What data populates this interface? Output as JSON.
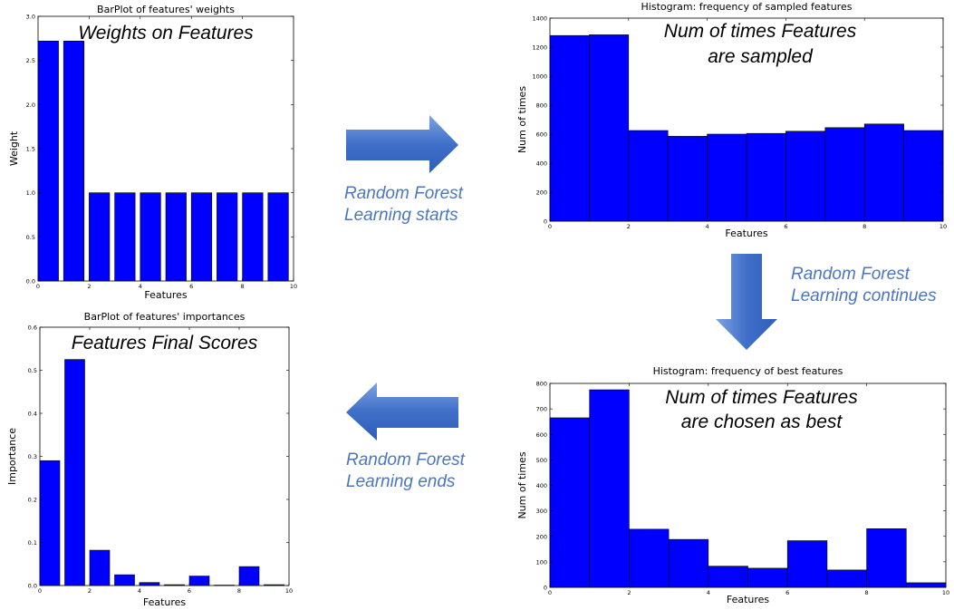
{
  "colors": {
    "bar": "#0000ff",
    "flow_text": "#4a76c2",
    "arrow": "#4a7cd0"
  },
  "flow": {
    "start": [
      "Random Forest",
      "Learning starts"
    ],
    "continue": [
      "Random Forest",
      "Learning continues"
    ],
    "end": [
      "Random Forest",
      "Learning ends"
    ]
  },
  "chart_data": [
    {
      "id": "weights",
      "type": "bar",
      "title": "BarPlot of features' weights",
      "overlay": [
        "Weights on Features"
      ],
      "xlabel": "Features",
      "ylabel": "Weight",
      "x": [
        0,
        1,
        2,
        3,
        4,
        5,
        6,
        7,
        8,
        9
      ],
      "values": [
        2.72,
        2.72,
        1.0,
        1.0,
        1.0,
        1.0,
        1.0,
        1.0,
        1.0,
        1.0
      ],
      "bar_width": 0.8,
      "xlim": [
        0,
        10
      ],
      "ylim": [
        0,
        3.0
      ],
      "xticks": [
        "0",
        "2",
        "4",
        "6",
        "8",
        "10"
      ],
      "yticks": [
        "0.0",
        "0.5",
        "1.0",
        "1.5",
        "2.0",
        "2.5",
        "3.0"
      ]
    },
    {
      "id": "sampled",
      "type": "bar",
      "title": "Histogram: frequency of sampled features",
      "overlay": [
        "Num of times Features",
        "are sampled"
      ],
      "xlabel": "Features",
      "ylabel": "Num of times",
      "x": [
        0,
        1,
        2,
        3,
        4,
        5,
        6,
        7,
        8,
        9
      ],
      "values": [
        1280,
        1285,
        625,
        585,
        600,
        605,
        620,
        645,
        670,
        625
      ],
      "bar_width": 1.0,
      "xlim": [
        0,
        10
      ],
      "ylim": [
        0,
        1400
      ],
      "xticks": [
        "0",
        "2",
        "4",
        "6",
        "8",
        "10"
      ],
      "yticks": [
        "0",
        "200",
        "400",
        "600",
        "800",
        "1000",
        "1200",
        "1400"
      ]
    },
    {
      "id": "importances",
      "type": "bar",
      "title": "BarPlot of features' importances",
      "overlay": [
        "Features Final Scores"
      ],
      "xlabel": "Features",
      "ylabel": "Importance",
      "x": [
        0,
        1,
        2,
        3,
        4,
        5,
        6,
        7,
        8,
        9
      ],
      "values": [
        0.29,
        0.525,
        0.082,
        0.025,
        0.007,
        0.002,
        0.022,
        0.001,
        0.044,
        0.002
      ],
      "bar_width": 0.8,
      "xlim": [
        0,
        10
      ],
      "ylim": [
        0,
        0.6
      ],
      "xticks": [
        "0",
        "2",
        "4",
        "6",
        "8",
        "10"
      ],
      "yticks": [
        "0.0",
        "0.1",
        "0.2",
        "0.3",
        "0.4",
        "0.5",
        "0.6"
      ]
    },
    {
      "id": "best",
      "type": "bar",
      "title": "Histogram: frequency of best features",
      "overlay": [
        "Num of times Features",
        "are chosen as best"
      ],
      "xlabel": "Features",
      "ylabel": "Num of times",
      "x": [
        0,
        1,
        2,
        3,
        4,
        5,
        6,
        7,
        8,
        9
      ],
      "values": [
        665,
        775,
        228,
        188,
        83,
        75,
        183,
        68,
        230,
        18
      ],
      "bar_width": 1.0,
      "xlim": [
        0,
        10
      ],
      "ylim": [
        0,
        800
      ],
      "xticks": [
        "0",
        "2",
        "4",
        "6",
        "8",
        "10"
      ],
      "yticks": [
        "0",
        "100",
        "200",
        "300",
        "400",
        "500",
        "600",
        "700",
        "800"
      ]
    }
  ]
}
